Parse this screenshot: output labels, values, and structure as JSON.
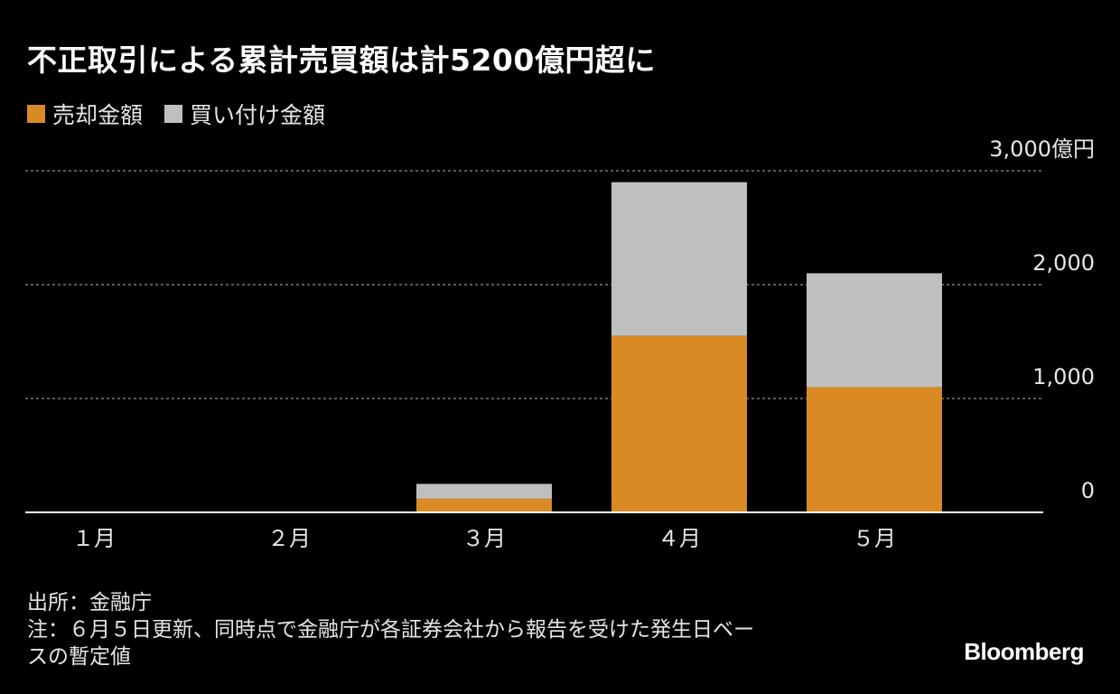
{
  "title": "不正取引による累計売買額は計5200億円超に",
  "legend": {
    "sell_label": "売却金額",
    "buy_label": "買い付け金額"
  },
  "colors": {
    "sell": "#d98a24",
    "buy": "#bfbfbf",
    "grid": "#777777",
    "axis": "#ffffff",
    "text": "#e6e6e6"
  },
  "chart_data": {
    "type": "bar",
    "stacked": true,
    "categories": [
      "１月",
      "２月",
      "３月",
      "４月",
      "５月"
    ],
    "series": [
      {
        "name": "売却金額",
        "values": [
          0,
          0,
          120,
          1550,
          1100
        ]
      },
      {
        "name": "買い付け金額",
        "values": [
          0,
          0,
          130,
          1350,
          1000
        ]
      }
    ],
    "ylim": [
      0,
      3000
    ],
    "yticks": [
      0,
      1000,
      2000,
      3000
    ],
    "ytick_labels": [
      "0",
      "1,000",
      "2,000",
      "3,000億円"
    ],
    "grid": true,
    "legend_position": "top-left"
  },
  "footer": {
    "source": "出所：金融庁",
    "note_line1": "注：６月５日更新、同時点で金融庁が各証券会社から報告を受けた発生日ベー",
    "note_line2": "スの暫定値"
  },
  "brand": "Bloomberg"
}
